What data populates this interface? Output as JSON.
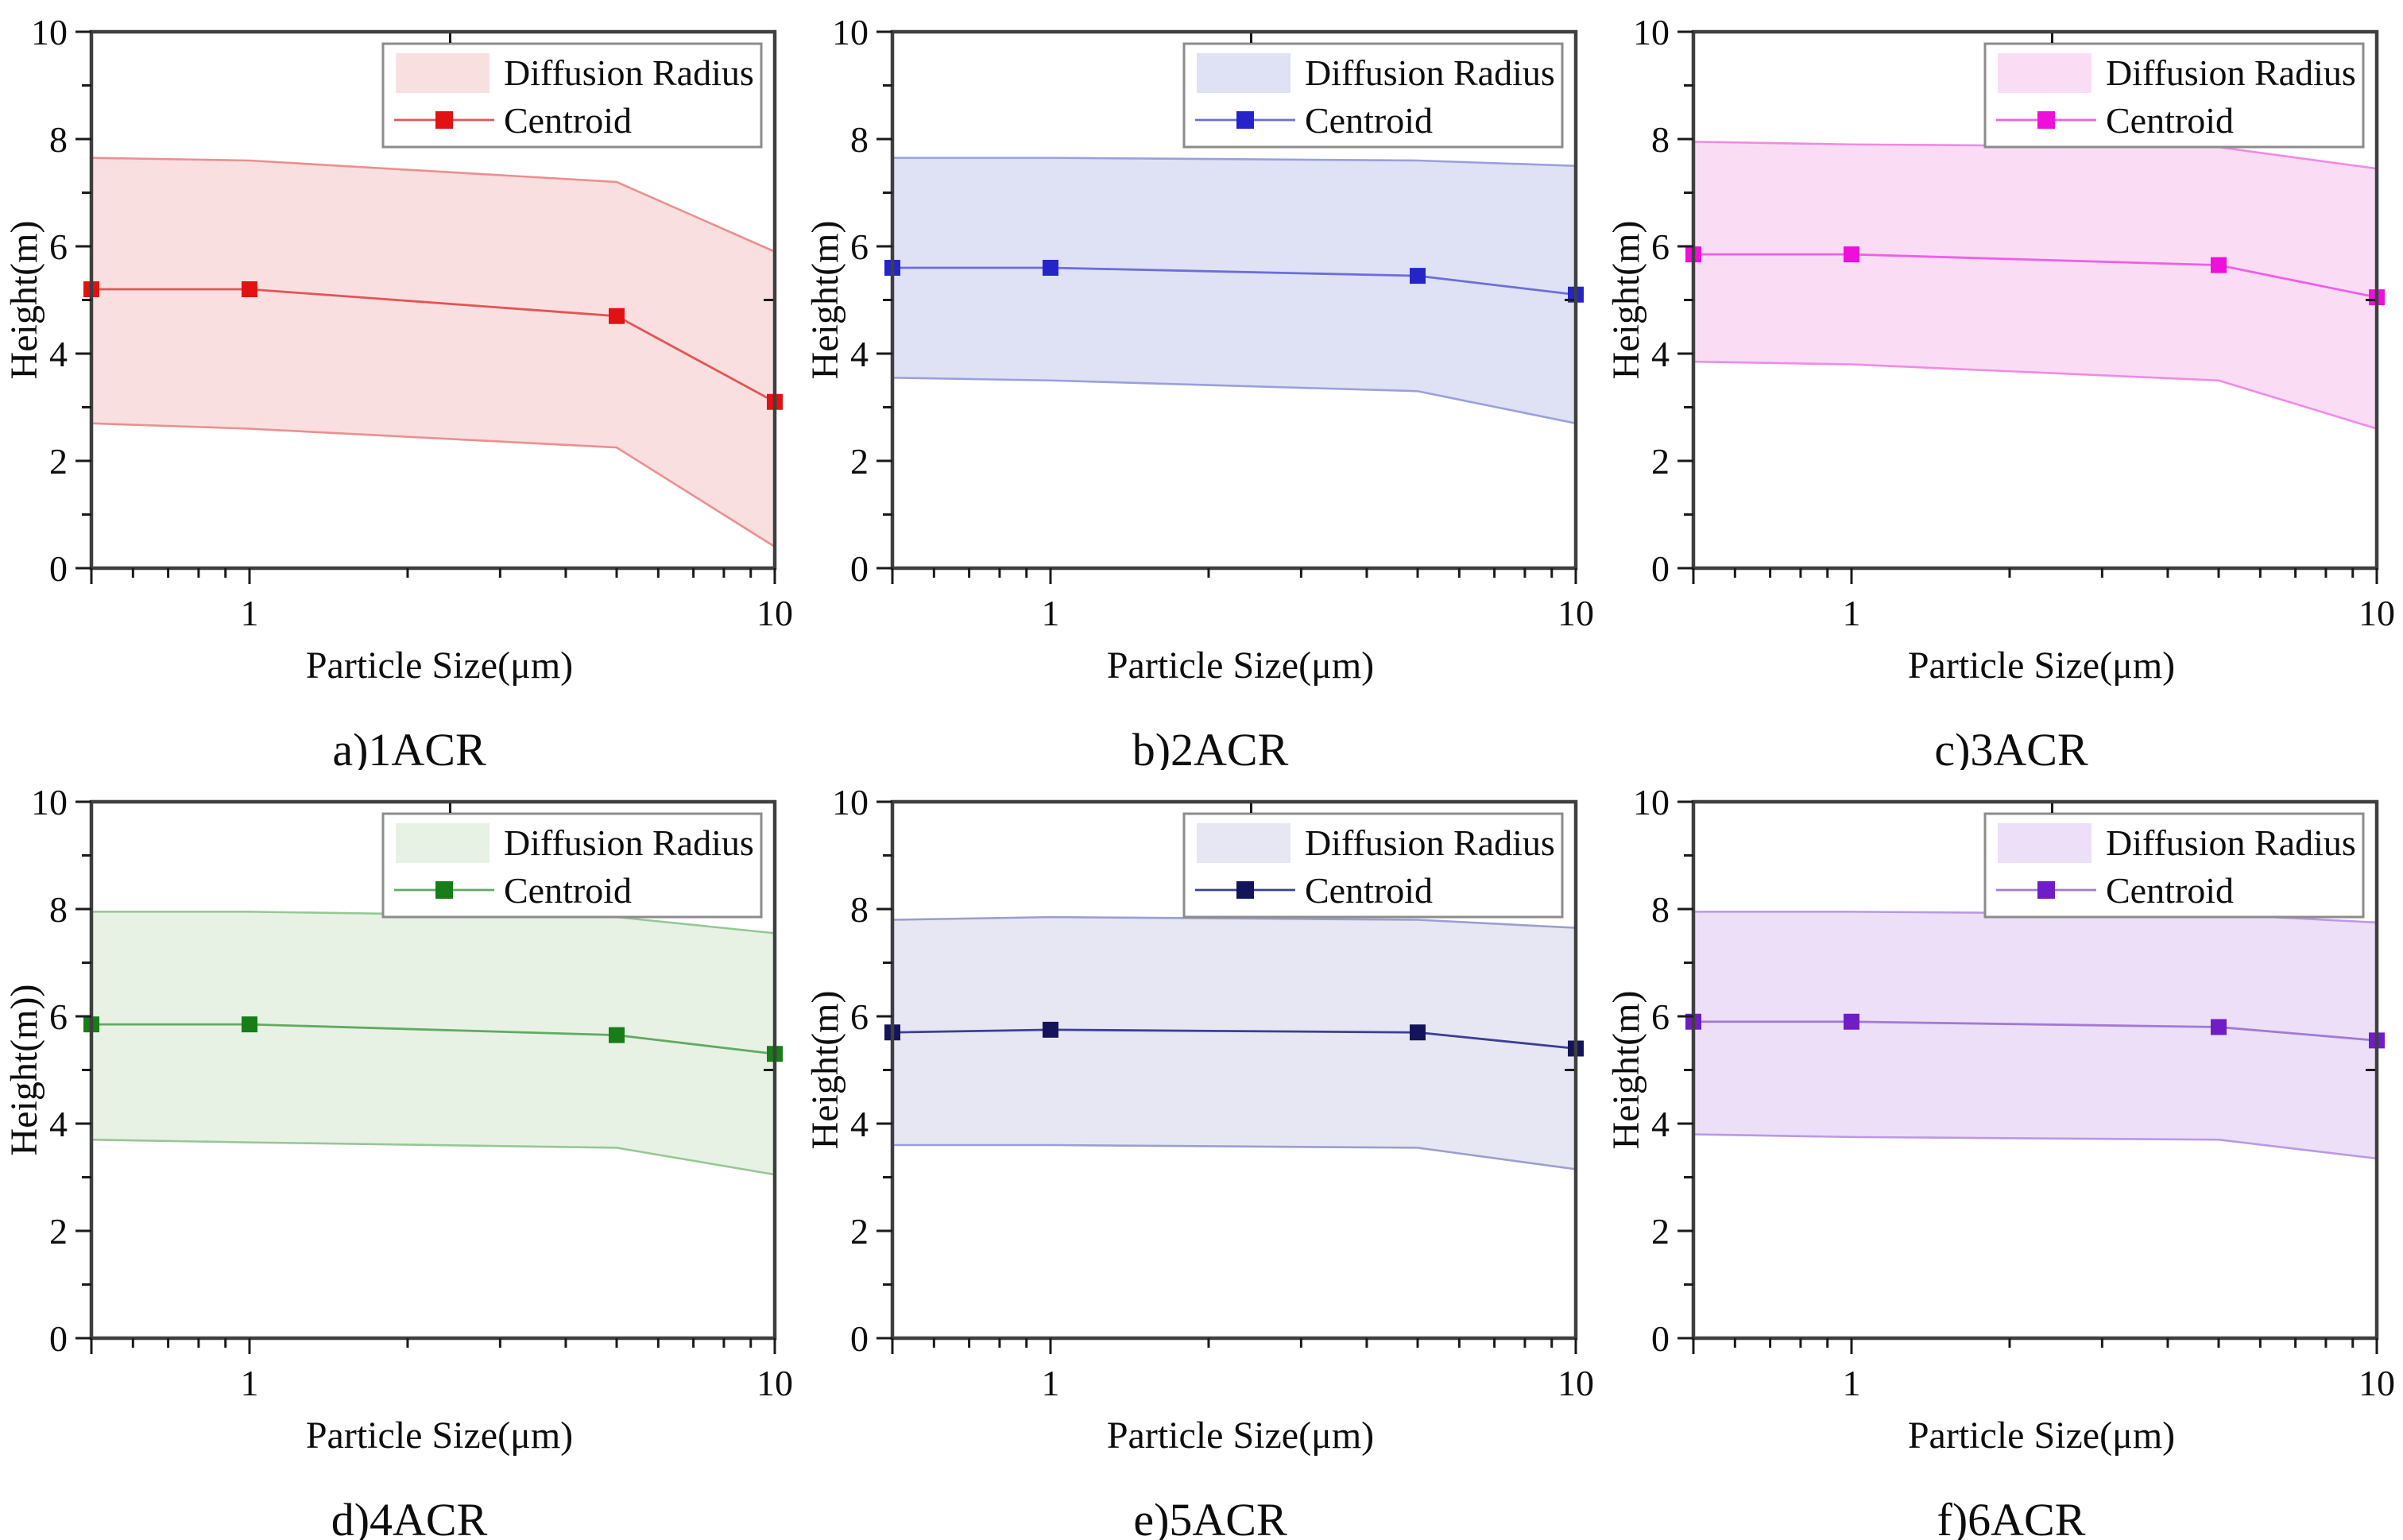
{
  "figure": {
    "background": "#ffffff",
    "frame_color": "#3f3f3f",
    "tick_color": "#1a1a1a",
    "text_color": "#0d0d0d",
    "legend": {
      "band_label": "Diffusion Radius",
      "centroid_label": "Centroid",
      "border_color": "#8c8c8c"
    },
    "x_axis_label": "Particle Size(μm)",
    "y_axis_label": "Height(m)",
    "x_tick_labels": [
      "1",
      "10"
    ],
    "y_tick_labels": [
      "0",
      "2",
      "4",
      "6",
      "8",
      "10"
    ]
  },
  "chart_data": [
    {
      "id": "a",
      "type": "area",
      "caption": "a)1ACR",
      "xlabel": "Particle Size(μm)",
      "ylabel": "Height(m)",
      "x_scale": "log",
      "xlim": [
        0.5,
        10
      ],
      "ylim": [
        0,
        10
      ],
      "grid": false,
      "legend_position": "top-right",
      "x": [
        0.5,
        1,
        5,
        10
      ],
      "series": [
        {
          "name": "Diffusion Radius upper bound",
          "values": [
            7.65,
            7.6,
            7.2,
            5.9
          ]
        },
        {
          "name": "Diffusion Radius lower bound",
          "values": [
            2.7,
            2.6,
            2.25,
            0.4
          ]
        },
        {
          "name": "Centroid",
          "values": [
            5.2,
            5.2,
            4.7,
            3.1
          ]
        }
      ],
      "colors": {
        "fill": "#fadfe1",
        "edge": "#ec8f8f",
        "line": "#e25555",
        "marker": "#e11212"
      }
    },
    {
      "id": "b",
      "type": "area",
      "caption": "b)2ACR",
      "xlabel": "Particle Size(μm)",
      "ylabel": "Height(m)",
      "x_scale": "log",
      "xlim": [
        0.5,
        10
      ],
      "ylim": [
        0,
        10
      ],
      "grid": false,
      "legend_position": "top-right",
      "x": [
        0.5,
        1,
        5,
        10
      ],
      "series": [
        {
          "name": "Diffusion Radius upper bound",
          "values": [
            7.65,
            7.65,
            7.6,
            7.5
          ]
        },
        {
          "name": "Diffusion Radius lower bound",
          "values": [
            3.55,
            3.5,
            3.3,
            2.7
          ]
        },
        {
          "name": "Centroid",
          "values": [
            5.6,
            5.6,
            5.45,
            5.1
          ]
        }
      ],
      "colors": {
        "fill": "#dfe1f5",
        "edge": "#9aa0dd",
        "line": "#6b6fd8",
        "marker": "#2524c9"
      }
    },
    {
      "id": "c",
      "type": "area",
      "caption": "c)3ACR",
      "xlabel": "Particle Size(μm)",
      "ylabel": "Height(m)",
      "x_scale": "log",
      "xlim": [
        0.5,
        10
      ],
      "ylim": [
        0,
        10
      ],
      "grid": false,
      "legend_position": "top-right",
      "x": [
        0.5,
        1,
        5,
        10
      ],
      "series": [
        {
          "name": "Diffusion Radius upper bound",
          "values": [
            7.95,
            7.9,
            7.85,
            7.45
          ]
        },
        {
          "name": "Diffusion Radius lower bound",
          "values": [
            3.85,
            3.8,
            3.5,
            2.6
          ]
        },
        {
          "name": "Centroid",
          "values": [
            5.85,
            5.85,
            5.65,
            5.05
          ]
        }
      ],
      "colors": {
        "fill": "#fadcf5",
        "edge": "#f08ae4",
        "line": "#ef5fe4",
        "marker": "#ee0fd8"
      }
    },
    {
      "id": "d",
      "type": "area",
      "caption": "d)4ACR",
      "xlabel": "Particle Size(μm)",
      "ylabel": "Height(m))",
      "x_scale": "log",
      "xlim": [
        0.5,
        10
      ],
      "ylim": [
        0,
        10
      ],
      "grid": false,
      "legend_position": "top-right",
      "x": [
        0.5,
        1,
        5,
        10
      ],
      "series": [
        {
          "name": "Diffusion Radius upper bound",
          "values": [
            7.95,
            7.95,
            7.85,
            7.55
          ]
        },
        {
          "name": "Diffusion Radius lower bound",
          "values": [
            3.7,
            3.65,
            3.55,
            3.05
          ]
        },
        {
          "name": "Centroid",
          "values": [
            5.85,
            5.85,
            5.65,
            5.3
          ]
        }
      ],
      "colors": {
        "fill": "#e7f2e4",
        "edge": "#96c795",
        "line": "#63a963",
        "marker": "#177d17"
      }
    },
    {
      "id": "e",
      "type": "area",
      "caption": "e)5ACR",
      "xlabel": "Particle Size(μm)",
      "ylabel": "Height(m)",
      "x_scale": "log",
      "xlim": [
        0.5,
        10
      ],
      "ylim": [
        0,
        10
      ],
      "grid": false,
      "legend_position": "top-right",
      "x": [
        0.5,
        1,
        5,
        10
      ],
      "series": [
        {
          "name": "Diffusion Radius upper bound",
          "values": [
            7.8,
            7.85,
            7.8,
            7.65
          ]
        },
        {
          "name": "Diffusion Radius lower bound",
          "values": [
            3.6,
            3.6,
            3.55,
            3.15
          ]
        },
        {
          "name": "Centroid",
          "values": [
            5.7,
            5.75,
            5.7,
            5.4
          ]
        }
      ],
      "colors": {
        "fill": "#e6e7f3",
        "edge": "#9b9ecf",
        "line": "#3c3f94",
        "marker": "#14145a"
      }
    },
    {
      "id": "f",
      "type": "area",
      "caption": "f)6ACR",
      "xlabel": "Particle Size(μm)",
      "ylabel": "Height(m)",
      "x_scale": "log",
      "xlim": [
        0.5,
        10
      ],
      "ylim": [
        0,
        10
      ],
      "grid": false,
      "legend_position": "top-right",
      "x": [
        0.5,
        1,
        5,
        10
      ],
      "series": [
        {
          "name": "Diffusion Radius upper bound",
          "values": [
            7.95,
            7.95,
            7.9,
            7.75
          ]
        },
        {
          "name": "Diffusion Radius lower bound",
          "values": [
            3.8,
            3.75,
            3.7,
            3.35
          ]
        },
        {
          "name": "Centroid",
          "values": [
            5.9,
            5.9,
            5.8,
            5.55
          ]
        }
      ],
      "colors": {
        "fill": "#ecdff7",
        "edge": "#bb98e6",
        "line": "#a379d6",
        "marker": "#6f1dc6"
      }
    }
  ]
}
